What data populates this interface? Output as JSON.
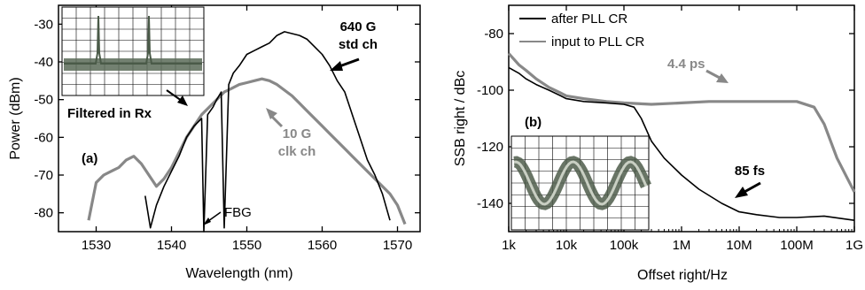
{
  "chart_data": [
    {
      "type": "line",
      "panel_label": "(a)",
      "xlabel": "Wavelength (nm)",
      "ylabel": "Power (dBm)",
      "xlim": [
        1525,
        1573
      ],
      "ylim": [
        -85,
        -25
      ],
      "xticks": [
        1530,
        1540,
        1550,
        1560,
        1570
      ],
      "yticks": [
        -30,
        -40,
        -50,
        -60,
        -70,
        -80
      ],
      "xtick_labels": [
        "1530",
        "1540",
        "1550",
        "1560",
        "1570"
      ],
      "ytick_labels": [
        "-30",
        "-40",
        "-50",
        "-60",
        "-70",
        "-80"
      ],
      "series": [
        {
          "name": "640 G std ch",
          "color": "#000000",
          "x": [
            1536.5,
            1537.2,
            1538,
            1539,
            1540,
            1541,
            1542,
            1543,
            1544,
            1544.3,
            1544.8,
            1545.5,
            1546,
            1546.6,
            1547,
            1547.6,
            1548.2,
            1549,
            1550,
            1551,
            1552,
            1553,
            1554,
            1555,
            1556,
            1557,
            1558,
            1559,
            1560,
            1561,
            1562,
            1563,
            1564,
            1565,
            1566,
            1567,
            1568,
            1569
          ],
          "y": [
            -75.5,
            -84,
            -78,
            -73,
            -69,
            -65,
            -60,
            -57,
            -55,
            -85,
            -54,
            -52,
            -50,
            -48,
            -84,
            -46,
            -43,
            -41,
            -38,
            -37,
            -36,
            -35,
            -33,
            -32,
            -32.5,
            -33,
            -34,
            -36,
            -38,
            -41,
            -45,
            -48,
            -54,
            -60,
            -66,
            -70,
            -75,
            -82
          ]
        },
        {
          "name": "10 G clk ch",
          "color": "#888888",
          "x": [
            1529,
            1530,
            1531,
            1532,
            1533,
            1534,
            1535,
            1536,
            1537,
            1538,
            1539,
            1540,
            1541,
            1542,
            1543,
            1544,
            1545,
            1546,
            1547,
            1548,
            1549,
            1550,
            1551,
            1552,
            1553,
            1554,
            1555,
            1556,
            1557,
            1558,
            1559,
            1560,
            1561,
            1562,
            1563,
            1564,
            1565,
            1566,
            1567,
            1568,
            1569,
            1570,
            1571
          ],
          "y": [
            -82,
            -72,
            -70,
            -69,
            -68,
            -66,
            -65,
            -67,
            -70,
            -73,
            -71,
            -68,
            -64,
            -60,
            -57,
            -54,
            -52,
            -50,
            -48,
            -47,
            -46,
            -45.5,
            -45,
            -44.5,
            -45,
            -46,
            -47.5,
            -49,
            -51,
            -53,
            -55,
            -57,
            -59,
            -61,
            -63,
            -65,
            -67,
            -69,
            -71,
            -73,
            -75,
            -78,
            -83
          ]
        }
      ],
      "annotations": {
        "std_line1": "640 G",
        "std_line2": "std ch",
        "clk_line1": "10 G",
        "clk_line2": "clk ch",
        "filtered": "Filtered in Rx",
        "fbg": "FBG"
      },
      "inset": {
        "description_text": ""
      }
    },
    {
      "type": "line",
      "panel_label": "(b)",
      "xlabel": "Offset right/Hz",
      "ylabel": "SSB right / dBc",
      "xscale": "log",
      "xlim": [
        1000,
        1000000000
      ],
      "ylim": [
        -150,
        -70
      ],
      "xticks": [
        1000,
        10000,
        100000,
        1000000,
        10000000,
        100000000,
        1000000000
      ],
      "yticks": [
        -80,
        -100,
        -120,
        -140
      ],
      "xtick_labels": [
        "1k",
        "10k",
        "100k",
        "1M",
        "10M",
        "100M",
        "1G"
      ],
      "ytick_labels": [
        "-80",
        "-100",
        "-120",
        "-140"
      ],
      "legend_position": "top",
      "series": [
        {
          "name": "after PLL CR",
          "color": "#000000",
          "x": [
            1000,
            1500,
            2000,
            3000,
            5000,
            8000,
            10000,
            20000,
            50000,
            100000,
            150000,
            200000,
            300000,
            500000,
            1000000,
            2000000,
            5000000,
            10000000,
            20000000,
            50000000,
            100000000,
            300000000,
            1000000000
          ],
          "y": [
            -92,
            -94,
            -96,
            -98,
            -100,
            -102,
            -103,
            -104,
            -104.5,
            -105,
            -106,
            -110,
            -118,
            -124,
            -130,
            -135,
            -140,
            -143,
            -144,
            -145,
            -145,
            -144.5,
            -146
          ]
        },
        {
          "name": "input to PLL CR",
          "color": "#888888",
          "x": [
            1000,
            1500,
            2000,
            3000,
            5000,
            8000,
            10000,
            20000,
            50000,
            100000,
            300000,
            1000000,
            3000000,
            10000000,
            30000000,
            100000000,
            200000000,
            300000000,
            500000000,
            1000000000
          ],
          "y": [
            -87,
            -91,
            -93,
            -96,
            -99,
            -101,
            -102,
            -103,
            -104,
            -104.5,
            -105,
            -104.5,
            -104,
            -104,
            -104,
            -104,
            -106,
            -112,
            -124,
            -136
          ]
        }
      ],
      "annotations": {
        "grey_jitter": "4.4 ps",
        "black_jitter": "85 fs"
      }
    }
  ]
}
